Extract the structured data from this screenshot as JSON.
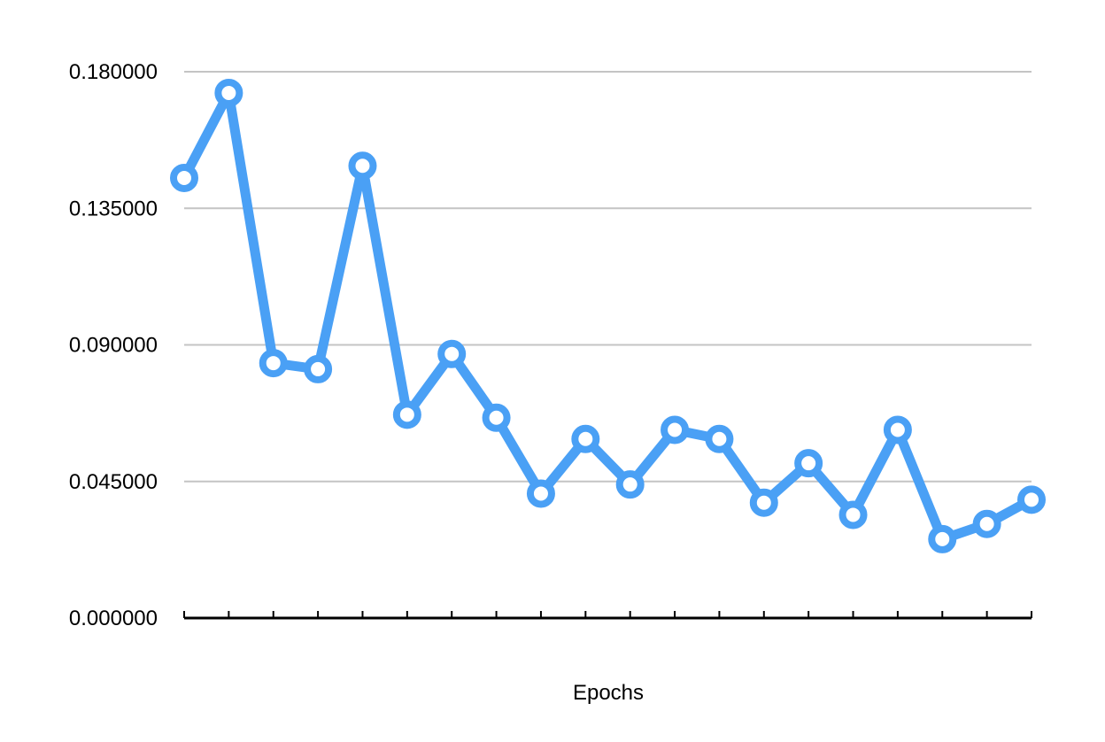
{
  "chart_data": {
    "type": "line",
    "title": "",
    "xlabel": "Epochs",
    "ylabel": "",
    "ylim": [
      0,
      0.18
    ],
    "yticks": [
      "0.000000",
      "0.045000",
      "0.090000",
      "0.135000",
      "0.180000"
    ],
    "grid": true,
    "series": [
      {
        "color": "#4aa0f5",
        "values": [
          0.145,
          0.173,
          0.084,
          0.082,
          0.149,
          0.067,
          0.087,
          0.066,
          0.041,
          0.059,
          0.044,
          0.062,
          0.059,
          0.038,
          0.051,
          0.034,
          0.062,
          0.026,
          0.031,
          0.039
        ]
      }
    ]
  }
}
